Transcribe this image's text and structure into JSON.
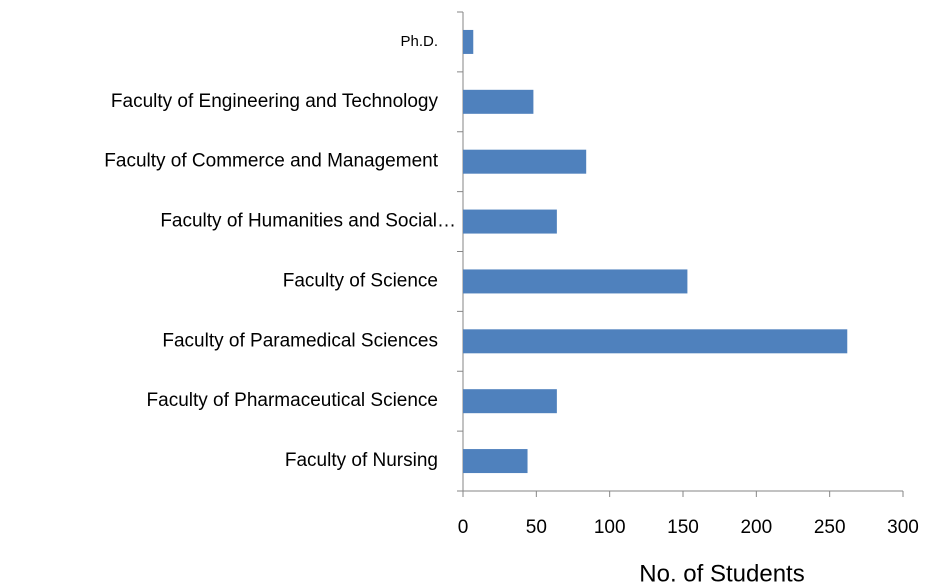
{
  "chart_data": {
    "type": "bar",
    "orientation": "horizontal",
    "categories": [
      "Faculty of Nursing",
      "Faculty of Pharmaceutical Science",
      "Faculty of Paramedical Sciences",
      "Faculty of Science",
      "Faculty of Humanities and Social…",
      "Faculty of Commerce and Management",
      "Faculty of Engineering and Technology",
      "Ph.D."
    ],
    "values": [
      44,
      64,
      262,
      153,
      64,
      84,
      48,
      7
    ],
    "color": "#4f81bd",
    "xlabel": "No. of Students",
    "xlim": [
      0,
      300
    ],
    "xticks": [
      0,
      50,
      100,
      150,
      200,
      250,
      300
    ],
    "grid": false
  }
}
